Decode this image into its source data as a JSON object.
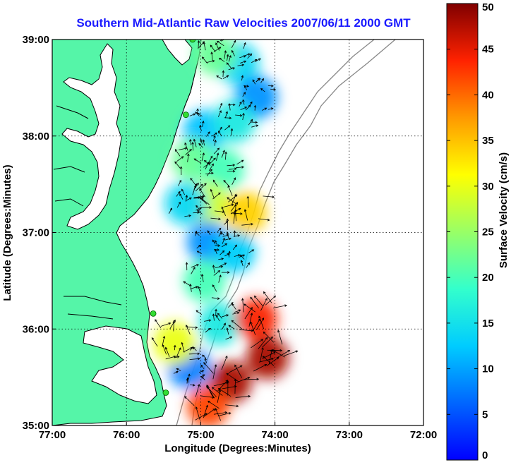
{
  "chart_data": {
    "type": "vector-field-map",
    "title": "Southern Mid-Atlantic Raw Velocities 2007/06/11 2000 GMT",
    "title_color": "#1a1aff",
    "xlabel": "Longitude (Degrees:Minutes)",
    "ylabel": "Latitude (Degrees:Minutes)",
    "x_ticks": [
      {
        "value": -77,
        "label": "77:00"
      },
      {
        "value": -76,
        "label": "76:00"
      },
      {
        "value": -75,
        "label": "75:00"
      },
      {
        "value": -74,
        "label": "74:00"
      },
      {
        "value": -73,
        "label": "73:00"
      },
      {
        "value": -72,
        "label": "72:00"
      }
    ],
    "y_ticks": [
      {
        "value": 35,
        "label": "35:00"
      },
      {
        "value": 36,
        "label": "36:00"
      },
      {
        "value": 37,
        "label": "37:00"
      },
      {
        "value": 38,
        "label": "38:00"
      },
      {
        "value": 39,
        "label": "39:00"
      }
    ],
    "xlim": [
      -77,
      -72
    ],
    "ylim": [
      35,
      39
    ],
    "grid": "dotted",
    "colorbar": {
      "label": "Surface Velocity (cm/s)",
      "min": 0,
      "max": 50,
      "ticks": [
        "0",
        "5",
        "10",
        "15",
        "20",
        "25",
        "30",
        "35",
        "40",
        "45",
        "50"
      ],
      "colormap": "jet"
    },
    "land_color": "#55f5a8",
    "site_color": "#33dd33",
    "sites": [
      {
        "lon": -75.11,
        "lat": 39.0
      },
      {
        "lon": -75.2,
        "lat": 38.22
      },
      {
        "lon": -75.64,
        "lat": 36.16
      },
      {
        "lon": -75.47,
        "lat": 35.34
      }
    ],
    "velocity_regions": [
      {
        "lon": -74.5,
        "lat": 38.75,
        "speed": 14
      },
      {
        "lon": -74.8,
        "lat": 38.85,
        "speed": 22
      },
      {
        "lon": -74.25,
        "lat": 38.4,
        "speed": 9
      },
      {
        "lon": -74.95,
        "lat": 38.05,
        "speed": 12
      },
      {
        "lon": -74.55,
        "lat": 38.15,
        "speed": 16
      },
      {
        "lon": -75.1,
        "lat": 37.75,
        "speed": 22
      },
      {
        "lon": -74.7,
        "lat": 37.65,
        "speed": 20
      },
      {
        "lon": -74.9,
        "lat": 37.3,
        "speed": 28
      },
      {
        "lon": -75.2,
        "lat": 37.3,
        "speed": 14
      },
      {
        "lon": -74.4,
        "lat": 37.2,
        "speed": 34
      },
      {
        "lon": -74.9,
        "lat": 36.9,
        "speed": 9
      },
      {
        "lon": -74.55,
        "lat": 36.8,
        "speed": 13
      },
      {
        "lon": -74.95,
        "lat": 36.5,
        "speed": 20
      },
      {
        "lon": -74.75,
        "lat": 36.05,
        "speed": 16
      },
      {
        "lon": -74.25,
        "lat": 36.1,
        "speed": 44
      },
      {
        "lon": -74.1,
        "lat": 35.7,
        "speed": 48
      },
      {
        "lon": -74.6,
        "lat": 35.45,
        "speed": 48
      },
      {
        "lon": -75.15,
        "lat": 35.6,
        "speed": 8
      },
      {
        "lon": -75.35,
        "lat": 35.85,
        "speed": 30
      },
      {
        "lon": -74.9,
        "lat": 35.2,
        "speed": 42
      }
    ]
  }
}
